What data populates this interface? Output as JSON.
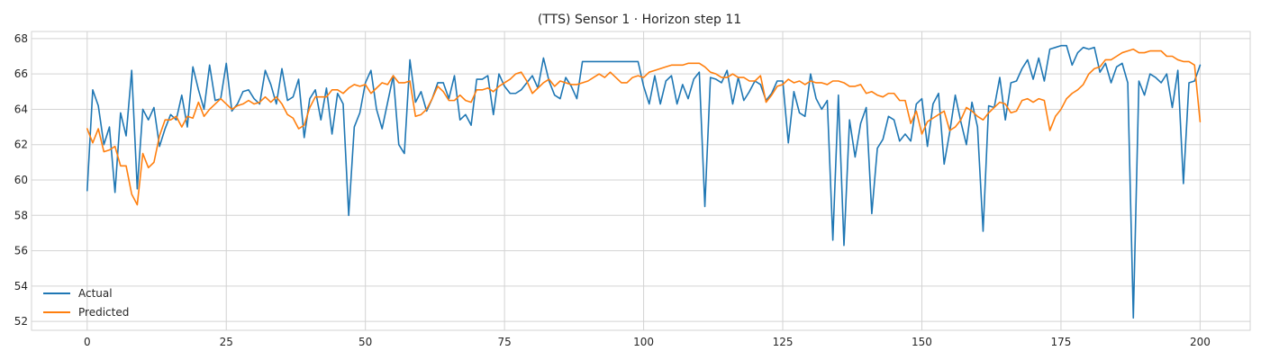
{
  "chart_data": {
    "type": "line",
    "title": "(TTS) Sensor 1 · Horizon step 11",
    "xlabel": "",
    "ylabel": "",
    "xlim": [
      -10,
      209
    ],
    "ylim": [
      51.5,
      68.4
    ],
    "xticks": [
      0,
      25,
      50,
      75,
      100,
      125,
      150,
      175,
      200
    ],
    "yticks": [
      52,
      54,
      56,
      58,
      60,
      62,
      64,
      66,
      68
    ],
    "grid": true,
    "legend_position": "lower-left",
    "series": [
      {
        "name": "Actual",
        "color": "#1f77b4",
        "values": [
          59.4,
          65.1,
          64.2,
          62.0,
          63.0,
          59.3,
          63.8,
          62.5,
          66.2,
          59.5,
          64.0,
          63.4,
          64.1,
          61.9,
          62.9,
          63.7,
          63.4,
          64.8,
          63.0,
          66.4,
          65.1,
          64.0,
          66.5,
          64.5,
          64.6,
          66.6,
          63.9,
          64.3,
          65.0,
          65.1,
          64.6,
          64.3,
          66.2,
          65.4,
          64.3,
          66.3,
          64.5,
          64.7,
          65.7,
          62.4,
          64.6,
          65.1,
          63.4,
          65.2,
          62.6,
          64.9,
          64.3,
          58.0,
          63.0,
          63.8,
          65.5,
          66.2,
          64.0,
          62.9,
          64.4,
          65.9,
          62.0,
          61.5,
          66.8,
          64.4,
          65.0,
          63.9,
          64.6,
          65.5,
          65.5,
          64.6,
          65.9,
          63.4,
          63.7,
          63.1,
          65.7,
          65.7,
          65.9,
          63.7,
          66.0,
          65.3,
          64.9,
          64.9,
          65.1,
          65.5,
          65.9,
          65.2,
          66.9,
          65.6,
          64.8,
          64.6,
          65.8,
          65.3,
          64.6,
          66.7,
          66.7,
          66.7,
          66.7,
          66.7,
          66.7,
          66.7,
          66.7,
          66.7,
          66.7,
          66.7,
          65.3,
          64.3,
          65.9,
          64.3,
          65.6,
          65.9,
          64.3,
          65.4,
          64.6,
          65.7,
          66.1,
          58.5,
          65.8,
          65.7,
          65.5,
          66.2,
          64.3,
          65.8,
          64.5,
          65.0,
          65.6,
          65.4,
          64.5,
          64.9,
          65.6,
          65.6,
          62.1,
          65.0,
          63.8,
          63.6,
          66.0,
          64.6,
          64.0,
          64.5,
          56.6,
          64.8,
          56.3,
          63.4,
          61.3,
          63.2,
          64.1,
          58.1,
          61.8,
          62.3,
          63.6,
          63.4,
          62.2,
          62.6,
          62.2,
          64.3,
          64.6,
          61.9,
          64.3,
          64.9,
          60.9,
          62.7,
          64.8,
          63.3,
          62.0,
          64.4,
          63.0,
          57.1,
          64.2,
          64.1,
          65.8,
          63.4,
          65.5,
          65.6,
          66.3,
          66.8,
          65.7,
          66.9,
          65.6,
          67.4,
          67.5,
          67.6,
          67.6,
          66.5,
          67.2,
          67.5,
          67.4,
          67.5,
          66.1,
          66.6,
          65.5,
          66.4,
          66.6,
          65.5,
          52.2,
          65.6,
          64.8,
          66.0,
          65.8,
          65.5,
          66.0,
          64.1,
          66.2,
          59.8,
          65.5,
          65.6,
          66.5
        ]
      },
      {
        "name": "Predicted",
        "color": "#ff7f0e",
        "values": [
          62.9,
          62.1,
          62.9,
          61.6,
          61.7,
          61.9,
          60.8,
          60.8,
          59.2,
          58.6,
          61.5,
          60.7,
          61.0,
          62.5,
          63.4,
          63.4,
          63.6,
          63.0,
          63.6,
          63.5,
          64.4,
          63.6,
          64.0,
          64.3,
          64.6,
          64.3,
          64.0,
          64.2,
          64.3,
          64.5,
          64.3,
          64.4,
          64.7,
          64.4,
          64.7,
          64.3,
          63.7,
          63.5,
          62.9,
          63.1,
          64.1,
          64.7,
          64.7,
          64.7,
          65.1,
          65.1,
          64.9,
          65.2,
          65.4,
          65.3,
          65.4,
          64.9,
          65.2,
          65.5,
          65.4,
          65.9,
          65.5,
          65.5,
          65.6,
          63.6,
          63.7,
          64.0,
          64.6,
          65.3,
          65.0,
          64.5,
          64.5,
          64.8,
          64.5,
          64.4,
          65.1,
          65.1,
          65.2,
          65.0,
          65.3,
          65.5,
          65.7,
          66.0,
          66.1,
          65.6,
          64.9,
          65.2,
          65.5,
          65.7,
          65.3,
          65.6,
          65.5,
          65.4,
          65.4,
          65.5,
          65.6,
          65.8,
          66.0,
          65.8,
          66.1,
          65.8,
          65.5,
          65.5,
          65.8,
          65.9,
          65.8,
          66.1,
          66.2,
          66.3,
          66.4,
          66.5,
          66.5,
          66.5,
          66.6,
          66.6,
          66.6,
          66.4,
          66.1,
          66.0,
          65.8,
          65.8,
          66.0,
          65.8,
          65.8,
          65.6,
          65.6,
          65.9,
          64.4,
          64.8,
          65.3,
          65.4,
          65.7,
          65.5,
          65.6,
          65.4,
          65.6,
          65.5,
          65.5,
          65.4,
          65.6,
          65.6,
          65.5,
          65.3,
          65.3,
          65.4,
          64.9,
          65.0,
          64.8,
          64.7,
          64.9,
          64.9,
          64.5,
          64.5,
          63.2,
          63.9,
          62.6,
          63.3,
          63.5,
          63.7,
          63.9,
          62.8,
          63.0,
          63.4,
          64.1,
          63.9,
          63.6,
          63.4,
          63.8,
          64.1,
          64.4,
          64.3,
          63.8,
          63.9,
          64.5,
          64.6,
          64.4,
          64.6,
          64.5,
          62.8,
          63.6,
          64.0,
          64.6,
          64.9,
          65.1,
          65.4,
          66.0,
          66.3,
          66.4,
          66.8,
          66.8,
          67.0,
          67.2,
          67.3,
          67.4,
          67.2,
          67.2,
          67.3,
          67.3,
          67.3,
          67.0,
          67.0,
          66.8,
          66.7,
          66.7,
          66.5,
          63.3
        ]
      }
    ]
  }
}
